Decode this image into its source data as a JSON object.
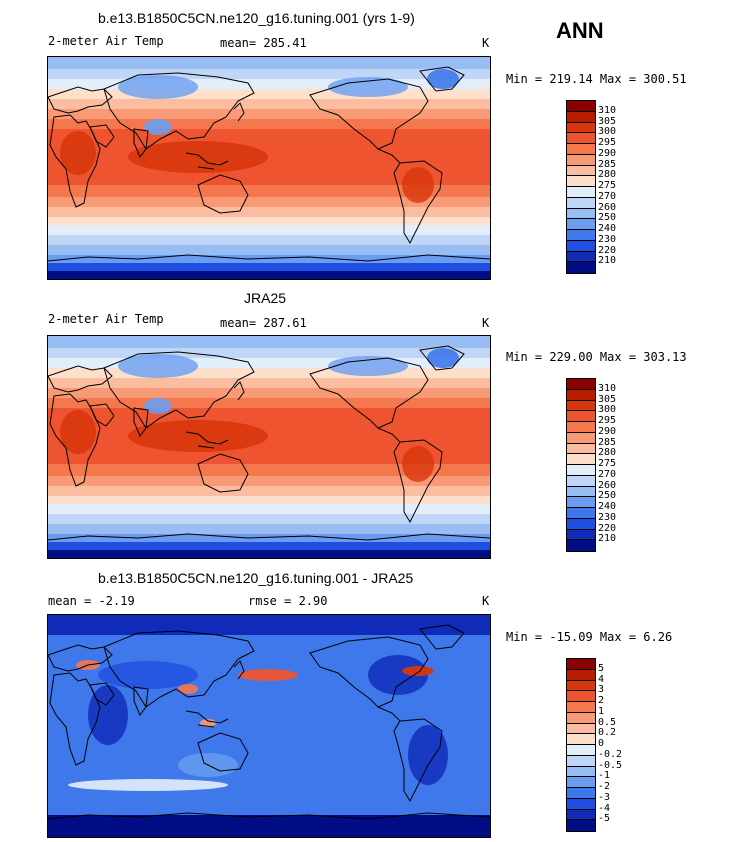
{
  "season": "ANN",
  "panels": [
    {
      "title": "b.e13.B1850C5CN.ne120_g16.tuning.001 (yrs 1-9)",
      "left_label": "2-meter Air Temp",
      "mid_label": "mean= 285.41",
      "units": "K",
      "minmax": "Min = 219.14 Max = 300.51",
      "mean_value": 285.41,
      "min_value": 219.14,
      "max_value": 300.51,
      "colorbar_labels": [
        "310",
        "305",
        "300",
        "295",
        "290",
        "285",
        "280",
        "275",
        "270",
        "260",
        "250",
        "240",
        "230",
        "220",
        "210"
      ],
      "colorbar_colors": [
        "#8b0000",
        "#b81c00",
        "#d8360c",
        "#ee5430",
        "#f4774e",
        "#f89a75",
        "#fbbd9f",
        "#fde0cc",
        "#e3eefb",
        "#c0d6f6",
        "#98bdf2",
        "#6a9df0",
        "#3f78eb",
        "#1f4fe0",
        "#0f2bb8",
        "#000d85"
      ],
      "map_style": "abs"
    },
    {
      "title": "JRA25",
      "left_label": "2-meter Air Temp",
      "mid_label": "mean= 287.61",
      "units": "K",
      "minmax": "Min = 229.00 Max = 303.13",
      "mean_value": 287.61,
      "min_value": 229.0,
      "max_value": 303.13,
      "colorbar_labels": [
        "310",
        "305",
        "300",
        "295",
        "290",
        "285",
        "280",
        "275",
        "270",
        "260",
        "250",
        "240",
        "230",
        "220",
        "210"
      ],
      "colorbar_colors": [
        "#8b0000",
        "#b81c00",
        "#d8360c",
        "#ee5430",
        "#f4774e",
        "#f89a75",
        "#fbbd9f",
        "#fde0cc",
        "#e3eefb",
        "#c0d6f6",
        "#98bdf2",
        "#6a9df0",
        "#3f78eb",
        "#1f4fe0",
        "#0f2bb8",
        "#000d85"
      ],
      "map_style": "abs"
    },
    {
      "title": "b.e13.B1850C5CN.ne120_g16.tuning.001 - JRA25",
      "left_label": "mean =   -2.19",
      "mid_label": "rmse =    2.90",
      "units": "K",
      "minmax": "Min = -15.09 Max =   6.26",
      "mean_value": -2.19,
      "rmse_value": 2.9,
      "min_value": -15.09,
      "max_value": 6.26,
      "colorbar_labels": [
        "5",
        "4",
        "3",
        "2",
        "1",
        "0.5",
        "0.2",
        "0",
        "-0.2",
        "-0.5",
        "-1",
        "-2",
        "-3",
        "-4",
        "-5"
      ],
      "colorbar_colors": [
        "#8b0000",
        "#b81c00",
        "#d8360c",
        "#ee5430",
        "#f4774e",
        "#f89a75",
        "#fbbd9f",
        "#fde0cc",
        "#e3eefb",
        "#c0d6f6",
        "#98bdf2",
        "#6a9df0",
        "#3f78eb",
        "#1f4fe0",
        "#0f2bb8",
        "#000d85"
      ],
      "map_style": "diff"
    }
  ]
}
